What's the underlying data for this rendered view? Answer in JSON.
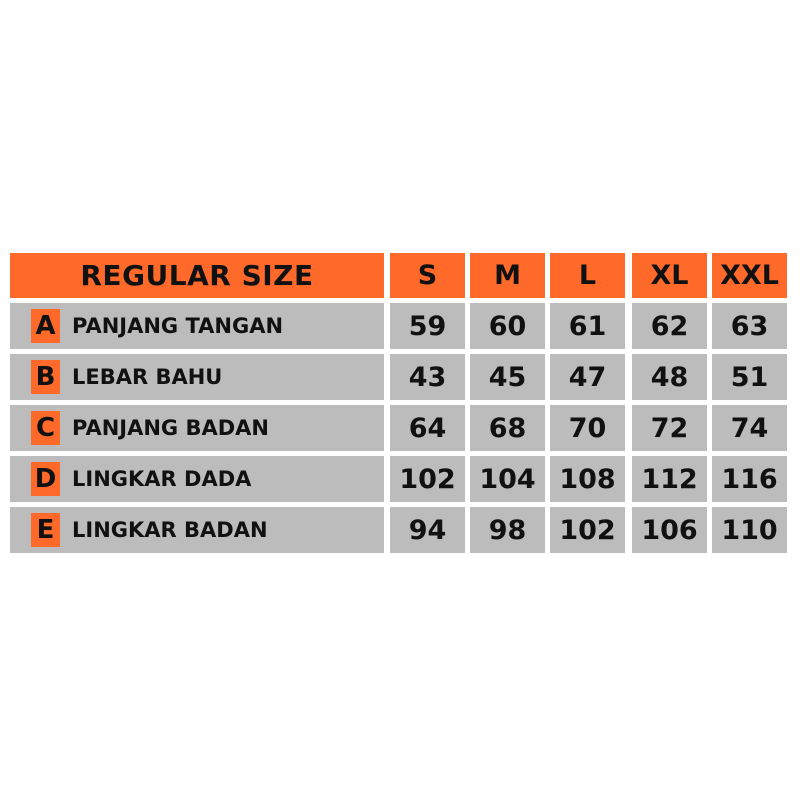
{
  "table": {
    "title": "REGULAR SIZE",
    "sizes": [
      "S",
      "M",
      "L",
      "XL",
      "XXL"
    ],
    "rows": [
      {
        "letter": "A",
        "label": "PANJANG TANGAN",
        "values": [
          "59",
          "60",
          "61",
          "62",
          "63"
        ]
      },
      {
        "letter": "B",
        "label": "LEBAR BAHU",
        "values": [
          "43",
          "45",
          "47",
          "48",
          "51"
        ]
      },
      {
        "letter": "C",
        "label": "PANJANG BADAN",
        "values": [
          "64",
          "68",
          "70",
          "72",
          "74"
        ]
      },
      {
        "letter": "D",
        "label": "LINGKAR DADA",
        "values": [
          "102",
          "104",
          "108",
          "112",
          "116"
        ]
      },
      {
        "letter": "E",
        "label": "LINGKAR BADAN",
        "values": [
          "94",
          "98",
          "102",
          "106",
          "110"
        ]
      }
    ],
    "colors": {
      "header": "#ff6a2b",
      "row": "#bcbcbc"
    }
  }
}
